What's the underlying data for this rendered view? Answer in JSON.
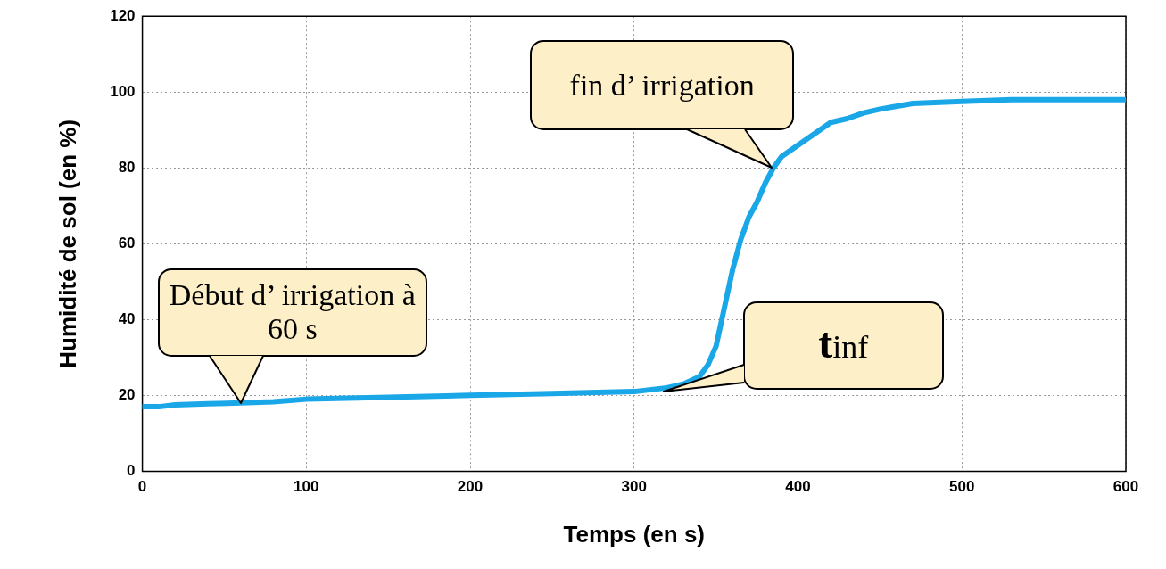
{
  "chart_data": {
    "type": "line",
    "xlabel": "Temps (en s)",
    "ylabel": "Humidité de sol (en %)",
    "xlim": [
      0,
      600
    ],
    "xticks": [
      0,
      100,
      200,
      300,
      400,
      500,
      600
    ],
    "ylim": [
      0,
      120
    ],
    "yticks": [
      0,
      20,
      40,
      60,
      80,
      100,
      120
    ],
    "grid": true,
    "legend": false,
    "marker": "none",
    "line_style": "solid",
    "series": [
      {
        "color": "#1aa7e8",
        "x": [
          0,
          10,
          20,
          40,
          60,
          80,
          100,
          150,
          200,
          250,
          300,
          320,
          330,
          340,
          345,
          350,
          355,
          360,
          365,
          370,
          375,
          380,
          385,
          390,
          400,
          410,
          420,
          430,
          440,
          450,
          470,
          500,
          530,
          560,
          600
        ],
        "values": [
          17,
          17,
          17.5,
          17.8,
          18,
          18.3,
          19,
          19.5,
          20,
          20.5,
          21,
          22,
          23,
          25,
          28,
          33,
          43,
          53,
          61,
          67,
          71,
          76,
          80,
          83,
          86,
          89,
          92,
          93,
          94.5,
          95.5,
          97,
          97.5,
          98,
          98,
          98
        ]
      }
    ],
    "annotations": [
      {
        "text": "Début d’ irrigation à 60 s",
        "x": 60,
        "y": 18
      },
      {
        "text": "fin d’ irrigation",
        "x": 384,
        "y": 80
      },
      "t$_{inf}$"
    ]
  }
}
